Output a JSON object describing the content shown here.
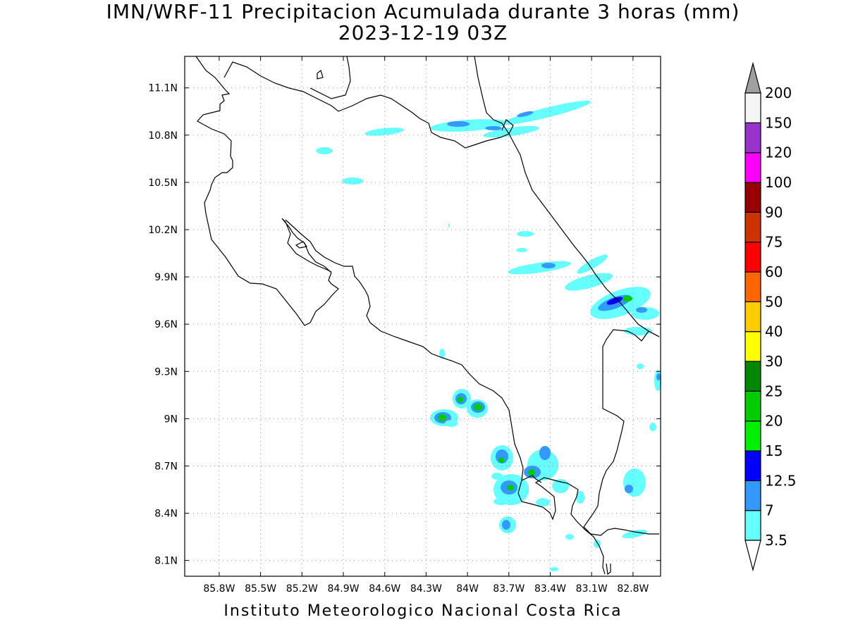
{
  "title_line1": "IMN/WRF-11 Precipitacion Acumulada durante 3 horas (mm)",
  "title_line2": "2023-12-19 03Z",
  "footer": "Instituto Meteorologico Nacional Costa Rica",
  "map": {
    "lon_range": [
      -86.05,
      -82.6
    ],
    "lat_range": [
      8.0,
      11.3
    ],
    "lat_ticks": [
      "11.1N",
      "10.8N",
      "10.5N",
      "10.2N",
      "9.9N",
      "9.6N",
      "9.3N",
      "9N",
      "8.7N",
      "8.4N",
      "8.1N"
    ],
    "lat_values": [
      11.1,
      10.8,
      10.5,
      10.2,
      9.9,
      9.6,
      9.3,
      9.0,
      8.7,
      8.4,
      8.1
    ],
    "lon_ticks": [
      "85.8W",
      "85.5W",
      "85.2W",
      "84.9W",
      "84.6W",
      "84.3W",
      "84W",
      "83.7W",
      "83.4W",
      "83.1W",
      "82.8W"
    ],
    "lon_values": [
      -85.8,
      -85.5,
      -85.2,
      -84.9,
      -84.6,
      -84.3,
      -84.0,
      -83.7,
      -83.4,
      -83.1,
      -82.8
    ],
    "grid": true
  },
  "colorbar": {
    "labels": [
      "3.5",
      "7",
      "12.5",
      "15",
      "20",
      "25",
      "30",
      "40",
      "50",
      "60",
      "75",
      "90",
      "100",
      "120",
      "150",
      "200"
    ],
    "colors": [
      "#66ffff",
      "#3399ff",
      "#0000ff",
      "#00ee00",
      "#00cc00",
      "#008800",
      "#ffff00",
      "#ffcc00",
      "#ff6600",
      "#ff0000",
      "#cc3300",
      "#990000",
      "#ff00ff",
      "#9933cc",
      "#f5f5f5",
      "#999999"
    ],
    "top_cap_color": "#a0a0a0",
    "bottom_cap_color": "#ffffff"
  },
  "precip_colors": {
    "light": "#66ffff",
    "medium": "#3399ff",
    "heavy": "#0000ff",
    "green": "#00cc00"
  }
}
